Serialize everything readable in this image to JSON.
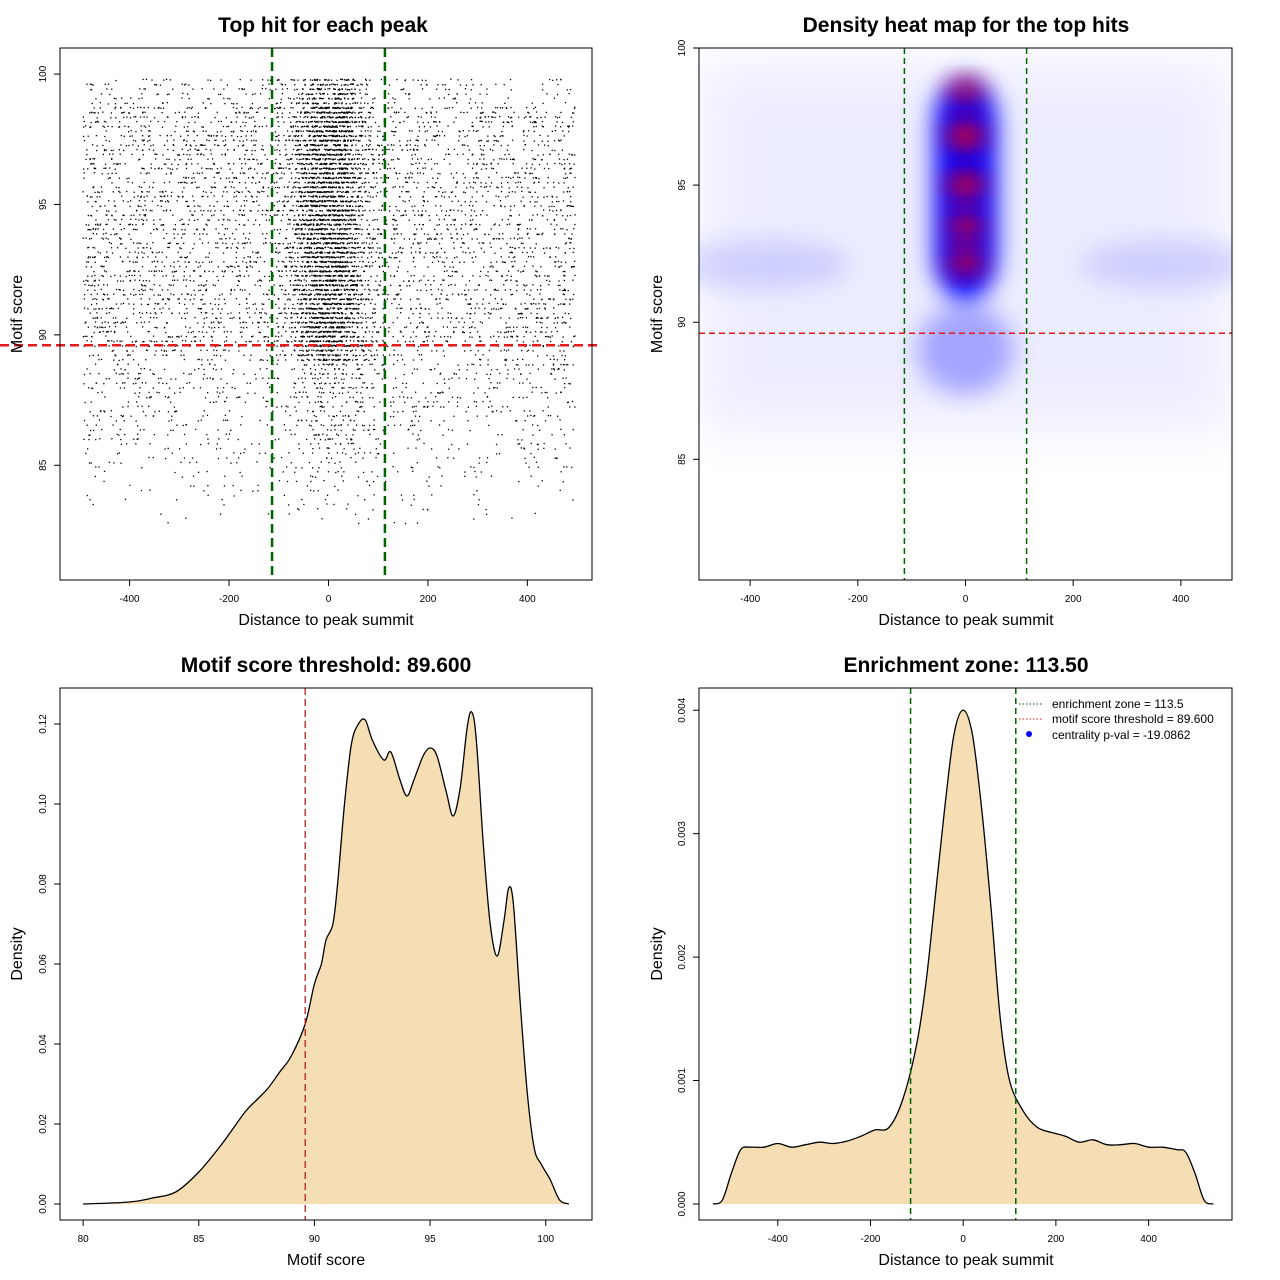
{
  "colors": {
    "zone_line": "#006400",
    "threshold_line": "#e41a1c",
    "density_fill": "#f5deb3",
    "scatter_point": "#000000",
    "heat_low": "#ffffff",
    "heat_mid": "#0000ff",
    "heat_high": "#ff0000"
  },
  "chart_data": [
    {
      "id": "scatter",
      "type": "scatter",
      "title": "Top hit for each peak",
      "xlabel": "Distance to peak summit",
      "ylabel": "Motif score",
      "xlim": [
        -540,
        530
      ],
      "ylim": [
        80.6,
        101
      ],
      "xticks": [
        -400,
        -200,
        0,
        200,
        400
      ],
      "xtick_labels": [
        "-400",
        "-200",
        "0",
        "200",
        "400"
      ],
      "yticks": [
        85,
        90,
        95,
        100
      ],
      "ytick_labels": [
        "85",
        "90",
        "95",
        "100"
      ],
      "annotations": {
        "vlines": [
          -113.5,
          113.5
        ],
        "hline": 89.6
      },
      "point_cloud": {
        "x_range": [
          -495,
          495
        ],
        "score_levels": 96,
        "center_enrichment": true
      }
    },
    {
      "id": "heatmap",
      "type": "heatmap",
      "title": "Density heat map for the top hits",
      "xlabel": "Distance to peak summit",
      "ylabel": "Motif score",
      "xlim": [
        -495,
        495
      ],
      "ylim": [
        80.6,
        100
      ],
      "xticks": [
        -400,
        -200,
        0,
        200,
        400
      ],
      "xtick_labels": [
        "-400",
        "-200",
        "0",
        "200",
        "400"
      ],
      "yticks": [
        85,
        90,
        95,
        100
      ],
      "ytick_labels": [
        "85",
        "90",
        "95",
        "100"
      ],
      "annotations": {
        "vlines": [
          -113.5,
          113.5
        ],
        "hline": 89.6
      },
      "hotspots": [
        {
          "x": 0,
          "y": 98.4,
          "intensity": 0.7
        },
        {
          "x": 0,
          "y": 96.8,
          "intensity": 1.0
        },
        {
          "x": 0,
          "y": 95.0,
          "intensity": 0.95
        },
        {
          "x": 0,
          "y": 93.5,
          "intensity": 0.85
        },
        {
          "x": 0,
          "y": 92.2,
          "intensity": 0.85
        }
      ]
    },
    {
      "id": "score-density",
      "type": "area",
      "title": "Motif score threshold: 89.600",
      "xlabel": "Motif score",
      "ylabel": "Density",
      "xlim": [
        79,
        102
      ],
      "ylim": [
        -0.004,
        0.129
      ],
      "xticks": [
        80,
        85,
        90,
        95,
        100
      ],
      "xtick_labels": [
        "80",
        "85",
        "90",
        "95",
        "100"
      ],
      "yticks": [
        0,
        0.02,
        0.04,
        0.06,
        0.08,
        0.1,
        0.12
      ],
      "ytick_labels": [
        "0.00",
        "0.02",
        "0.04",
        "0.06",
        "0.08",
        "0.10",
        "0.12"
      ],
      "annotations": {
        "vlines": [
          89.6
        ]
      },
      "x": [
        80,
        82,
        83,
        84,
        85,
        86,
        87,
        87.5,
        88,
        88.5,
        89,
        89.6,
        90,
        90.3,
        90.5,
        90.8,
        91,
        91.3,
        91.6,
        91.9,
        92.2,
        92.5,
        93,
        93.3,
        93.7,
        94,
        94.3,
        94.7,
        95,
        95.3,
        95.7,
        96,
        96.3,
        96.6,
        96.8,
        97,
        97.3,
        97.6,
        97.9,
        98.2,
        98.4,
        98.6,
        98.9,
        99.2,
        99.5,
        99.8,
        100.2,
        100.6,
        101
      ],
      "y": [
        0,
        0.0005,
        0.0015,
        0.003,
        0.008,
        0.015,
        0.023,
        0.026,
        0.029,
        0.033,
        0.037,
        0.045,
        0.055,
        0.06,
        0.066,
        0.07,
        0.08,
        0.1,
        0.115,
        0.12,
        0.121,
        0.116,
        0.111,
        0.113,
        0.106,
        0.102,
        0.106,
        0.112,
        0.114,
        0.112,
        0.103,
        0.097,
        0.104,
        0.119,
        0.123,
        0.116,
        0.09,
        0.07,
        0.062,
        0.071,
        0.079,
        0.075,
        0.05,
        0.028,
        0.014,
        0.01,
        0.006,
        0.001,
        0
      ]
    },
    {
      "id": "distance-density",
      "type": "area",
      "title": "Enrichment zone: 113.50",
      "xlabel": "Distance to peak summit",
      "ylabel": "Density",
      "xlim": [
        -570,
        580
      ],
      "ylim": [
        -0.00013,
        0.00418
      ],
      "xticks": [
        -400,
        -200,
        0,
        200,
        400
      ],
      "xtick_labels": [
        "-400",
        "-200",
        "0",
        "200",
        "400"
      ],
      "yticks": [
        0,
        0.001,
        0.002,
        0.003,
        0.004
      ],
      "ytick_labels": [
        "0.000",
        "0.001",
        "0.002",
        "0.003",
        "0.004"
      ],
      "annotations": {
        "vlines": [
          -113.5,
          113.5
        ]
      },
      "legend": {
        "position": "top-right",
        "entries": [
          {
            "label": "enrichment zone = 113.5",
            "kind": "dotted-line",
            "color": "#006400"
          },
          {
            "label": "motif score threshold = 89.600",
            "kind": "dotted-line",
            "color": "#e41a1c"
          },
          {
            "label": "centrality p-val = -19.0862",
            "kind": "point",
            "color": "#0000ff"
          }
        ]
      },
      "x": [
        -540,
        -520,
        -500,
        -480,
        -460,
        -430,
        -400,
        -370,
        -340,
        -310,
        -280,
        -250,
        -220,
        -190,
        -160,
        -130,
        -100,
        -80,
        -60,
        -40,
        -20,
        0,
        20,
        40,
        60,
        80,
        100,
        130,
        160,
        190,
        220,
        250,
        280,
        310,
        340,
        370,
        400,
        430,
        460,
        480,
        500,
        520,
        540
      ],
      "y": [
        0,
        3e-05,
        0.00025,
        0.00044,
        0.00046,
        0.00046,
        0.00049,
        0.00046,
        0.00048,
        0.0005,
        0.00049,
        0.00051,
        0.00055,
        0.0006,
        0.00062,
        0.00085,
        0.0013,
        0.0018,
        0.0025,
        0.0032,
        0.0038,
        0.004,
        0.0038,
        0.0032,
        0.0024,
        0.0015,
        0.001,
        0.00075,
        0.00062,
        0.00058,
        0.00055,
        0.0005,
        0.00052,
        0.00048,
        0.00048,
        0.00049,
        0.00046,
        0.00046,
        0.00044,
        0.00042,
        0.00025,
        3e-05,
        0
      ]
    }
  ]
}
